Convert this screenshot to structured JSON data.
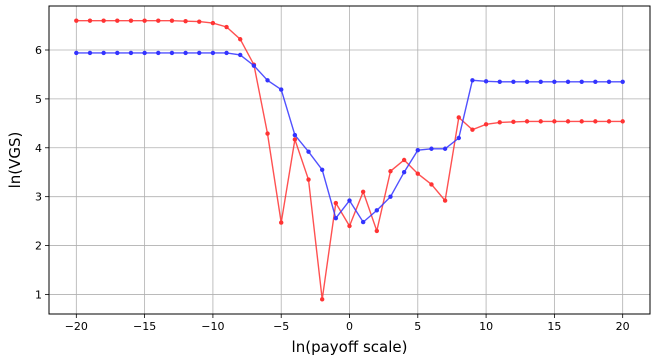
{
  "chart_data": {
    "type": "line",
    "title": "",
    "xlabel": "ln(payoff scale)",
    "ylabel": "ln(VGS)",
    "xlim": [
      -22,
      22
    ],
    "ylim": [
      0.6,
      6.9
    ],
    "xticks": [
      -20,
      -15,
      -10,
      -5,
      0,
      5,
      10,
      15,
      20
    ],
    "yticks": [
      1,
      2,
      3,
      4,
      5,
      6
    ],
    "grid": true,
    "series": [
      {
        "color": "#ff3333",
        "x": [
          -20,
          -19,
          -18,
          -17,
          -16,
          -15,
          -14,
          -13,
          -12,
          -11,
          -10,
          -9,
          -8,
          -7,
          -6,
          -5,
          -4,
          -3,
          -2,
          -1,
          0,
          1,
          2,
          3,
          4,
          5,
          6,
          7,
          8,
          9,
          10,
          11,
          12,
          13,
          14,
          15,
          16,
          17,
          18,
          19,
          20
        ],
        "y": [
          6.6,
          6.6,
          6.6,
          6.6,
          6.6,
          6.6,
          6.6,
          6.6,
          6.59,
          6.58,
          6.55,
          6.47,
          6.22,
          5.7,
          4.29,
          2.47,
          4.17,
          3.35,
          0.9,
          2.87,
          2.4,
          3.1,
          2.3,
          3.52,
          3.75,
          3.47,
          3.25,
          2.92,
          4.62,
          4.37,
          4.48,
          4.52,
          4.53,
          4.54,
          4.54,
          4.54,
          4.54,
          4.54,
          4.54,
          4.54,
          4.54
        ]
      },
      {
        "color": "#3333ff",
        "x": [
          -20,
          -19,
          -18,
          -17,
          -16,
          -15,
          -14,
          -13,
          -12,
          -11,
          -10,
          -9,
          -8,
          -7,
          -6,
          -5,
          -4,
          -3,
          -2,
          -1,
          0,
          1,
          2,
          3,
          4,
          5,
          6,
          7,
          8,
          9,
          10,
          11,
          12,
          13,
          14,
          15,
          16,
          17,
          18,
          19,
          20
        ],
        "y": [
          5.94,
          5.94,
          5.94,
          5.94,
          5.94,
          5.94,
          5.94,
          5.94,
          5.94,
          5.94,
          5.94,
          5.94,
          5.9,
          5.68,
          5.38,
          5.19,
          4.26,
          3.92,
          3.55,
          2.56,
          2.92,
          2.48,
          2.72,
          3.0,
          3.5,
          3.95,
          3.98,
          3.98,
          4.2,
          5.38,
          5.36,
          5.35,
          5.35,
          5.35,
          5.35,
          5.35,
          5.35,
          5.35,
          5.35,
          5.35,
          5.35
        ]
      }
    ]
  }
}
